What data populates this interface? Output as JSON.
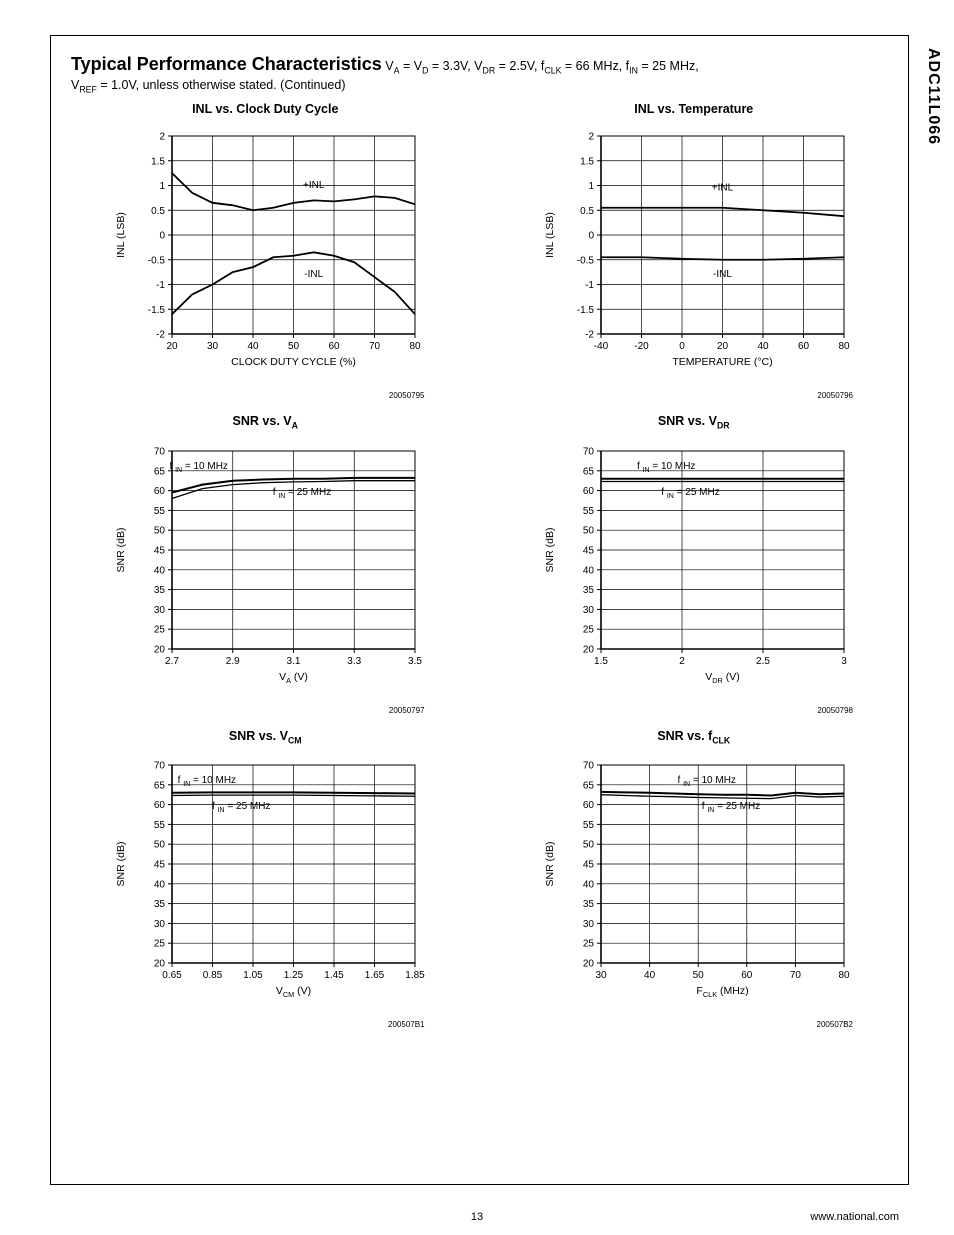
{
  "side_label": "ADC11L066",
  "header": {
    "title_bold": "Typical Performance Characteristics",
    "conditions_html": " V<sub>A</sub> = V<sub>D</sub> = 3.3V, V<sub>DR</sub> = 2.5V, f<sub>CLK</sub> = 66 MHz, f<sub>IN</sub> = 25 MHz,",
    "sub_html": "V<sub>REF</sub> = 1.0V, unless otherwise stated.  (Continued)"
  },
  "page_number": "13",
  "footer_url": "www.national.com",
  "charts": [
    {
      "title_html": "INL vs. Clock Duty Cycle",
      "id": "20050795",
      "x_label": "CLOCK DUTY CYCLE (%)",
      "y_label": "INL (LSB)",
      "y_lim": [
        -2,
        2
      ],
      "y_ticks": [
        -2,
        -1.5,
        -1,
        -0.5,
        0,
        0.5,
        1,
        1.5,
        2
      ],
      "x_lim": [
        20,
        80
      ],
      "x_ticks": [
        20,
        30,
        40,
        50,
        60,
        70,
        80
      ],
      "x_tick_suffix": "",
      "series": [
        {
          "label": "+INL",
          "label_at": [
            55,
            0.95
          ],
          "pts": [
            [
              20,
              1.25
            ],
            [
              25,
              0.85
            ],
            [
              30,
              0.65
            ],
            [
              35,
              0.6
            ],
            [
              40,
              0.5
            ],
            [
              45,
              0.55
            ],
            [
              50,
              0.65
            ],
            [
              55,
              0.7
            ],
            [
              60,
              0.68
            ],
            [
              65,
              0.72
            ],
            [
              70,
              0.78
            ],
            [
              75,
              0.75
            ],
            [
              80,
              0.62
            ]
          ]
        },
        {
          "label": "-INL",
          "label_at": [
            55,
            -0.85
          ],
          "pts": [
            [
              20,
              -1.6
            ],
            [
              25,
              -1.2
            ],
            [
              30,
              -1.0
            ],
            [
              35,
              -0.75
            ],
            [
              40,
              -0.65
            ],
            [
              45,
              -0.45
            ],
            [
              50,
              -0.42
            ],
            [
              55,
              -0.35
            ],
            [
              60,
              -0.42
            ],
            [
              65,
              -0.55
            ],
            [
              70,
              -0.85
            ],
            [
              75,
              -1.15
            ],
            [
              80,
              -1.6
            ]
          ]
        }
      ]
    },
    {
      "title_html": "INL vs. Temperature",
      "id": "20050796",
      "x_label": "TEMPERATURE (°C)",
      "y_label": "INL (LSB)",
      "y_lim": [
        -2,
        2
      ],
      "y_ticks": [
        -2,
        -1.5,
        -1,
        -0.5,
        0,
        0.5,
        1,
        1.5,
        2
      ],
      "x_lim": [
        -40,
        80
      ],
      "x_ticks": [
        -40,
        -20,
        0,
        20,
        40,
        60,
        80
      ],
      "x_tick_suffix": "",
      "series": [
        {
          "label": "+INL",
          "label_at": [
            20,
            0.9
          ],
          "pts": [
            [
              -40,
              0.55
            ],
            [
              -20,
              0.55
            ],
            [
              0,
              0.55
            ],
            [
              20,
              0.55
            ],
            [
              40,
              0.5
            ],
            [
              60,
              0.45
            ],
            [
              80,
              0.38
            ]
          ]
        },
        {
          "label": "-INL",
          "label_at": [
            20,
            -0.85
          ],
          "pts": [
            [
              -40,
              -0.45
            ],
            [
              -20,
              -0.45
            ],
            [
              0,
              -0.48
            ],
            [
              20,
              -0.5
            ],
            [
              40,
              -0.5
            ],
            [
              60,
              -0.48
            ],
            [
              80,
              -0.45
            ]
          ]
        }
      ]
    },
    {
      "title_html": "SNR vs. V<sub>A</sub>",
      "id": "20050797",
      "x_label_html": "V<sub>A</sub>  (V)",
      "y_label": "SNR (dB)",
      "y_lim": [
        20,
        70
      ],
      "y_ticks": [
        20,
        25,
        30,
        35,
        40,
        45,
        50,
        55,
        60,
        65,
        70
      ],
      "x_lim": [
        2.7,
        3.5
      ],
      "x_ticks": [
        2.7,
        2.9,
        3.1,
        3.3,
        3.5
      ],
      "label_box_a": {
        "text_html": "f <sub>IN</sub>  = 10 MHz",
        "at": [
          2.84,
          65.5
        ]
      },
      "label_box_b": {
        "text_html": "f <sub>IN</sub>  = 25 MHz",
        "at": [
          3.18,
          59
        ]
      },
      "series": [
        {
          "pts": [
            [
              2.7,
              59.5
            ],
            [
              2.8,
              61.5
            ],
            [
              2.9,
              62.5
            ],
            [
              3.0,
              62.8
            ],
            [
              3.1,
              63
            ],
            [
              3.2,
              63
            ],
            [
              3.3,
              63.2
            ],
            [
              3.4,
              63.2
            ],
            [
              3.5,
              63.2
            ]
          ],
          "width": 2
        },
        {
          "pts": [
            [
              2.7,
              58
            ],
            [
              2.8,
              60.5
            ],
            [
              2.9,
              61.5
            ],
            [
              3.0,
              62
            ],
            [
              3.1,
              62.2
            ],
            [
              3.2,
              62.3
            ],
            [
              3.3,
              62.5
            ],
            [
              3.4,
              62.5
            ],
            [
              3.5,
              62.5
            ]
          ],
          "width": 1.3
        }
      ]
    },
    {
      "title_html": "SNR vs. V<sub>DR</sub>",
      "id": "20050798",
      "x_label_html": "V<sub>DR</sub>  (V)",
      "y_label": "SNR (dB)",
      "y_lim": [
        20,
        70
      ],
      "y_ticks": [
        20,
        25,
        30,
        35,
        40,
        45,
        50,
        55,
        60,
        65,
        70
      ],
      "x_lim": [
        1.5,
        3.0
      ],
      "x_ticks": [
        1.5,
        2,
        2.5,
        3
      ],
      "label_box_a": {
        "text_html": "f <sub>IN</sub>  = 10 MHz",
        "at": [
          2.0,
          65.5
        ]
      },
      "label_box_b": {
        "text_html": "f <sub>IN</sub>  = 25 MHz",
        "at": [
          2.15,
          59
        ]
      },
      "series": [
        {
          "pts": [
            [
              1.5,
              63
            ],
            [
              1.8,
              63
            ],
            [
              2.1,
              63
            ],
            [
              2.4,
              63
            ],
            [
              2.7,
              63
            ],
            [
              3.0,
              63
            ]
          ],
          "width": 2
        },
        {
          "pts": [
            [
              1.5,
              62.3
            ],
            [
              1.8,
              62.3
            ],
            [
              2.1,
              62.3
            ],
            [
              2.4,
              62.3
            ],
            [
              2.7,
              62.3
            ],
            [
              3.0,
              62.3
            ]
          ],
          "width": 1.3
        }
      ]
    },
    {
      "title_html": "SNR vs. V<sub>CM</sub>",
      "id": "200507B1",
      "x_label_html": "V<sub>CM</sub> (V)",
      "y_label": "SNR (dB)",
      "y_lim": [
        20,
        70
      ],
      "y_ticks": [
        20,
        25,
        30,
        35,
        40,
        45,
        50,
        55,
        60,
        65,
        70
      ],
      "x_lim": [
        0.65,
        1.85
      ],
      "x_ticks": [
        0.65,
        0.85,
        1.05,
        1.25,
        1.45,
        1.65,
        1.85
      ],
      "label_box_a": {
        "text_html": "f <sub>IN</sub>  = 10 MHz",
        "at": [
          0.9,
          65.5
        ]
      },
      "label_box_b": {
        "text_html": "f <sub>IN</sub>  = 25 MHz",
        "at": [
          1.07,
          59
        ]
      },
      "series": [
        {
          "pts": [
            [
              0.65,
              63
            ],
            [
              0.85,
              63.1
            ],
            [
              1.05,
              63.1
            ],
            [
              1.25,
              63.1
            ],
            [
              1.45,
              63
            ],
            [
              1.65,
              62.9
            ],
            [
              1.85,
              62.8
            ]
          ],
          "width": 2
        },
        {
          "pts": [
            [
              0.65,
              62.3
            ],
            [
              0.85,
              62.4
            ],
            [
              1.05,
              62.4
            ],
            [
              1.25,
              62.4
            ],
            [
              1.45,
              62.3
            ],
            [
              1.65,
              62.2
            ],
            [
              1.85,
              62.1
            ]
          ],
          "width": 1.3
        }
      ]
    },
    {
      "title_html": "SNR vs. f<sub>CLK</sub>",
      "id": "200507B2",
      "x_label_html": "F<sub>CLK</sub>  (MHz)",
      "y_label": "SNR (dB)",
      "y_lim": [
        20,
        70
      ],
      "y_ticks": [
        20,
        25,
        30,
        35,
        40,
        45,
        50,
        55,
        60,
        65,
        70
      ],
      "x_lim": [
        30,
        80
      ],
      "x_ticks": [
        30,
        40,
        50,
        60,
        70,
        80
      ],
      "label_box_a": {
        "text_html": "f <sub>IN</sub>  = 10 MHz",
        "at": [
          55,
          65.5
        ]
      },
      "label_box_b": {
        "text_html": "f <sub>IN</sub>  = 25 MHz",
        "at": [
          60,
          59
        ]
      },
      "series": [
        {
          "pts": [
            [
              30,
              63.2
            ],
            [
              35,
              63.1
            ],
            [
              40,
              63
            ],
            [
              45,
              62.8
            ],
            [
              50,
              62.6
            ],
            [
              55,
              62.5
            ],
            [
              60,
              62.5
            ],
            [
              65,
              62.3
            ],
            [
              70,
              63
            ],
            [
              75,
              62.6
            ],
            [
              80,
              62.8
            ]
          ],
          "width": 2
        },
        {
          "pts": [
            [
              30,
              62.5
            ],
            [
              35,
              62.3
            ],
            [
              40,
              62.1
            ],
            [
              45,
              62
            ],
            [
              50,
              61.8
            ],
            [
              55,
              61.7
            ],
            [
              60,
              61.6
            ],
            [
              65,
              61.5
            ],
            [
              70,
              62.3
            ],
            [
              75,
              61.9
            ],
            [
              80,
              62.1
            ]
          ],
          "width": 1.3
        }
      ]
    }
  ],
  "plot": {
    "axis_color": "#000",
    "grid_color": "#000",
    "line_color": "#000",
    "bg": "#fff",
    "font_size_tick": 10,
    "font_size_axis": 10.5,
    "font_size_anno": 10,
    "stroke_width": 1.8,
    "grid_stroke": 0.7
  }
}
